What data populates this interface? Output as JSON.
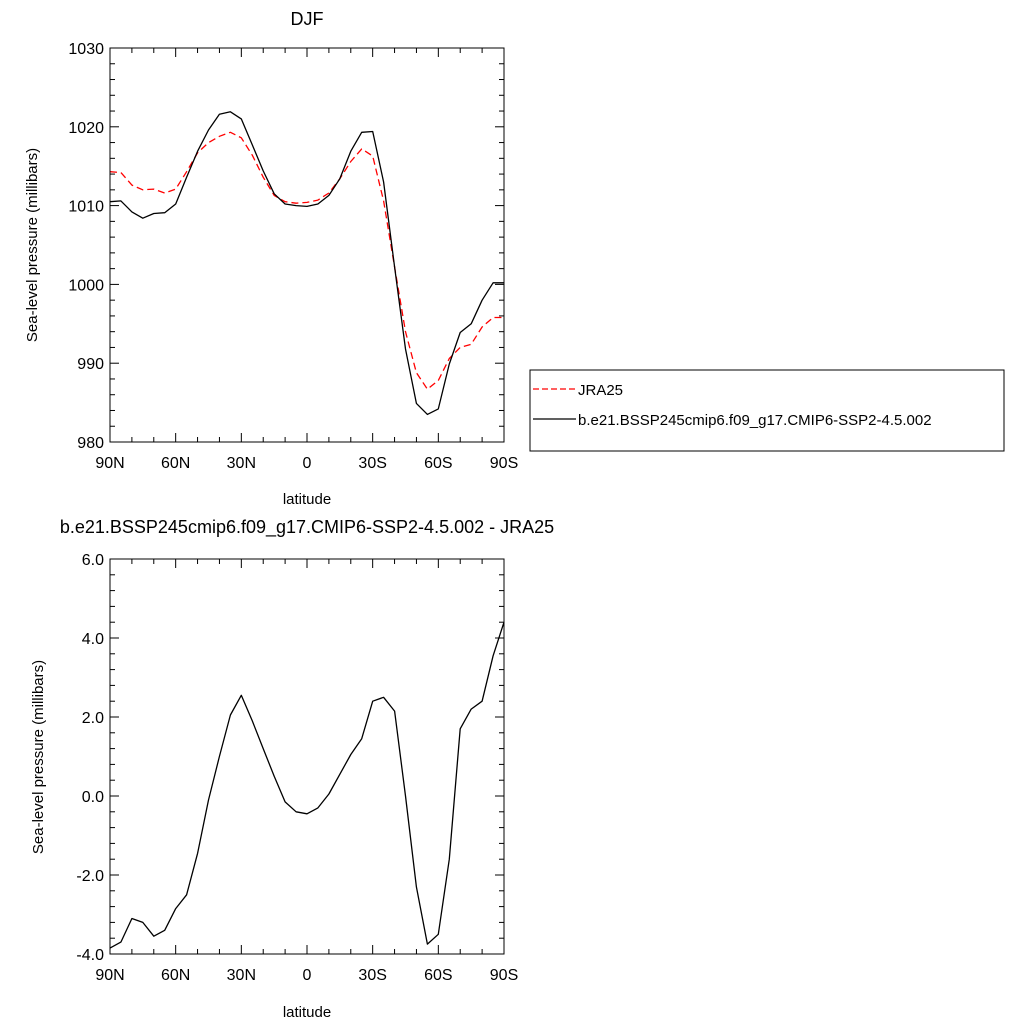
{
  "colors": {
    "obs": "#ff0000",
    "model": "#000000"
  },
  "chart_data": [
    {
      "type": "line",
      "title": "DJF",
      "xlabel": "latitude",
      "ylabel": "Sea-level pressure (millibars)",
      "xlim": [
        90,
        -90
      ],
      "ylim": [
        980,
        1030
      ],
      "xticks": [
        90,
        60,
        30,
        0,
        -30,
        -60,
        -90
      ],
      "xtick_labels": [
        "90N",
        "60N",
        "30N",
        "0",
        "30S",
        "60S",
        "90S"
      ],
      "yticks": [
        980,
        990,
        1000,
        1010,
        1020,
        1030
      ],
      "ytick_labels": [
        "980",
        "990",
        "1000",
        "1010",
        "1020",
        "1030"
      ],
      "legend_position": "right",
      "series": [
        {
          "name": "JRA25",
          "style": "dashed",
          "color": "#ff0000",
          "x": [
            90,
            85,
            80,
            75,
            70,
            65,
            60,
            55,
            50,
            45,
            40,
            35,
            30,
            25,
            20,
            15,
            10,
            5,
            0,
            -5,
            -10,
            -15,
            -20,
            -25,
            -30,
            -35,
            -40,
            -45,
            -50,
            -55,
            -60,
            -65,
            -70,
            -75,
            -80,
            -85,
            -90
          ],
          "y": [
            1014.3,
            1014.2,
            1012.6,
            1012.0,
            1012.1,
            1011.6,
            1012.1,
            1014.3,
            1016.7,
            1018.0,
            1018.8,
            1019.3,
            1018.6,
            1016.4,
            1013.6,
            1011.3,
            1010.5,
            1010.3,
            1010.4,
            1010.7,
            1011.6,
            1013.4,
            1015.6,
            1017.2,
            1016.3,
            1010.6,
            1002.2,
            994.0,
            988.8,
            986.7,
            987.8,
            990.6,
            992.0,
            992.4,
            994.6,
            995.8,
            995.8
          ]
        },
        {
          "name": "b.e21.BSSP245cmip6.f09_g17.CMIP6-SSP2-4.5.002",
          "style": "solid",
          "color": "#000000",
          "x": [
            90,
            85,
            80,
            75,
            70,
            65,
            60,
            55,
            50,
            45,
            40,
            35,
            30,
            25,
            20,
            15,
            10,
            5,
            0,
            -5,
            -10,
            -15,
            -20,
            -25,
            -30,
            -35,
            -40,
            -45,
            -50,
            -55,
            -60,
            -65,
            -70,
            -75,
            -80,
            -85,
            -90
          ],
          "y": [
            1010.5,
            1010.6,
            1009.2,
            1008.4,
            1009.0,
            1009.1,
            1010.2,
            1013.6,
            1016.9,
            1019.6,
            1021.6,
            1021.9,
            1021.0,
            1017.7,
            1014.4,
            1011.5,
            1010.2,
            1010.0,
            1009.9,
            1010.2,
            1011.3,
            1013.4,
            1016.9,
            1019.3,
            1019.4,
            1013.0,
            1002.2,
            991.8,
            984.9,
            983.5,
            984.2,
            989.9,
            993.9,
            995.0,
            998.0,
            1000.2,
            1000.2
          ]
        }
      ]
    },
    {
      "type": "line",
      "title": "b.e21.BSSP245cmip6.f09_g17.CMIP6-SSP2-4.5.002 - JRA25",
      "xlabel": "latitude",
      "ylabel": "Sea-level pressure (millibars)",
      "xlim": [
        90,
        -90
      ],
      "ylim": [
        -4.0,
        6.0
      ],
      "xticks": [
        90,
        60,
        30,
        0,
        -30,
        -60,
        -90
      ],
      "xtick_labels": [
        "90N",
        "60N",
        "30N",
        "0",
        "30S",
        "60S",
        "90S"
      ],
      "yticks": [
        -4.0,
        -2.0,
        0.0,
        2.0,
        4.0,
        6.0
      ],
      "ytick_labels": [
        "-4.0",
        "-2.0",
        "0.0",
        "2.0",
        "4.0",
        "6.0"
      ],
      "series": [
        {
          "style": "solid",
          "color": "#000000",
          "x": [
            90,
            85,
            80,
            75,
            70,
            65,
            60,
            55,
            50,
            45,
            40,
            35,
            30,
            25,
            20,
            15,
            10,
            5,
            0,
            -5,
            -10,
            -15,
            -20,
            -25,
            -30,
            -35,
            -40,
            -45,
            -50,
            -55,
            -60,
            -65,
            -70,
            -75,
            -80,
            -85,
            -90
          ],
          "y": [
            -3.85,
            -3.7,
            -3.1,
            -3.2,
            -3.55,
            -3.4,
            -2.85,
            -2.5,
            -1.45,
            -0.1,
            1.0,
            2.05,
            2.55,
            1.9,
            1.2,
            0.5,
            -0.15,
            -0.4,
            -0.45,
            -0.3,
            0.05,
            0.55,
            1.05,
            1.45,
            2.4,
            2.5,
            2.15,
            0.0,
            -2.3,
            -3.75,
            -3.5,
            -1.6,
            1.7,
            2.2,
            2.4,
            3.55,
            4.4
          ]
        }
      ]
    }
  ]
}
